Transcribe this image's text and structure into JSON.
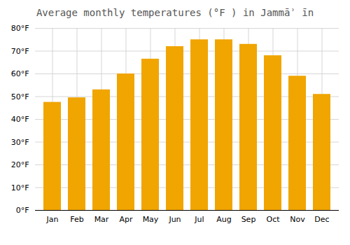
{
  "chart_data": {
    "type": "bar",
    "title": "Average monthly temperatures (°F ) in Jammāʾ īn",
    "categories": [
      "Jan",
      "Feb",
      "Mar",
      "Apr",
      "May",
      "Jun",
      "Jul",
      "Aug",
      "Sep",
      "Oct",
      "Nov",
      "Dec"
    ],
    "values": [
      47.5,
      49.5,
      53.0,
      60.0,
      66.5,
      72.0,
      75.0,
      75.0,
      73.0,
      68.0,
      59.0,
      51.0
    ],
    "color": "#F0A500",
    "ylim": [
      0,
      80
    ],
    "yticks": [
      {
        "value": 0,
        "label": "0°F"
      },
      {
        "value": 10,
        "label": "10°F"
      },
      {
        "value": 20,
        "label": "20°F"
      },
      {
        "value": 30,
        "label": "30°F"
      },
      {
        "value": 40,
        "label": "40°F"
      },
      {
        "value": 50,
        "label": "50°F"
      },
      {
        "value": 60,
        "label": "60°F"
      },
      {
        "value": 70,
        "label": "70°F"
      },
      {
        "value": 80,
        "label": "80°F"
      }
    ],
    "grid": true
  }
}
